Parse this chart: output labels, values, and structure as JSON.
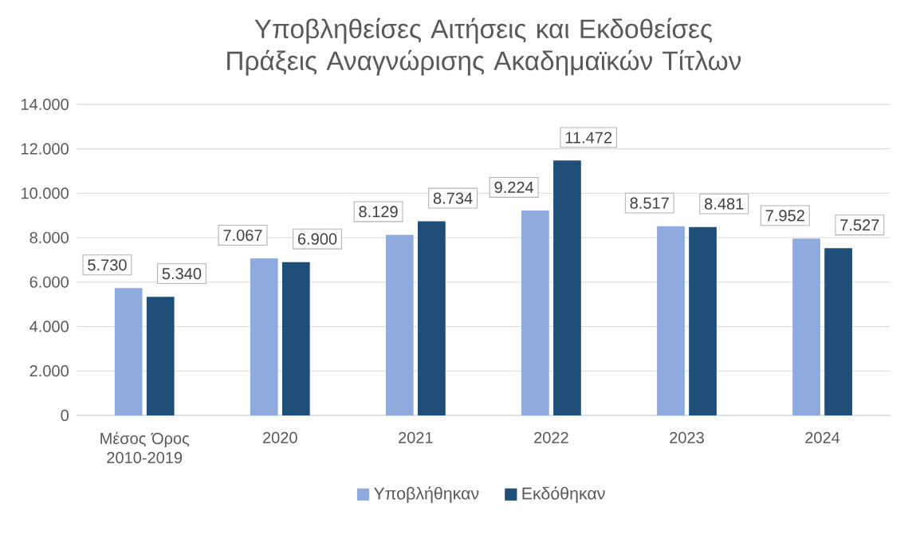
{
  "chart_data": {
    "type": "bar",
    "title": "Υποβληθείσες Αιτήσεις και Εκδοθείσες Πράξεις Αναγνώρισης Ακαδημαϊκών Τίτλων",
    "categories": [
      "Μέσος Όρος 2010-2019",
      "2020",
      "2021",
      "2022",
      "2023",
      "2024"
    ],
    "series": [
      {
        "name": "Υποβλήθηκαν",
        "color": "#8faadc",
        "values": [
          5730,
          7067,
          8129,
          9224,
          8517,
          7952
        ],
        "value_labels": [
          "5.730",
          "7.067",
          "8.129",
          "9.224",
          "8.517",
          "7.952"
        ]
      },
      {
        "name": "Εκδόθηκαν",
        "color": "#1f4e79",
        "values": [
          5340,
          6900,
          8734,
          11472,
          8481,
          7527
        ],
        "value_labels": [
          "5.340",
          "6.900",
          "8.734",
          "11.472",
          "8.481",
          "7.527"
        ]
      }
    ],
    "ylim": [
      0,
      14000
    ],
    "yticks": [
      {
        "value": 0,
        "label": "0"
      },
      {
        "value": 2000,
        "label": "2.000"
      },
      {
        "value": 4000,
        "label": "4.000"
      },
      {
        "value": 6000,
        "label": "6.000"
      },
      {
        "value": 8000,
        "label": "8.000"
      },
      {
        "value": 10000,
        "label": "10.000"
      },
      {
        "value": 12000,
        "label": "12.000"
      },
      {
        "value": 14000,
        "label": "14.000"
      }
    ],
    "grid": "y",
    "legend": "bottom"
  }
}
